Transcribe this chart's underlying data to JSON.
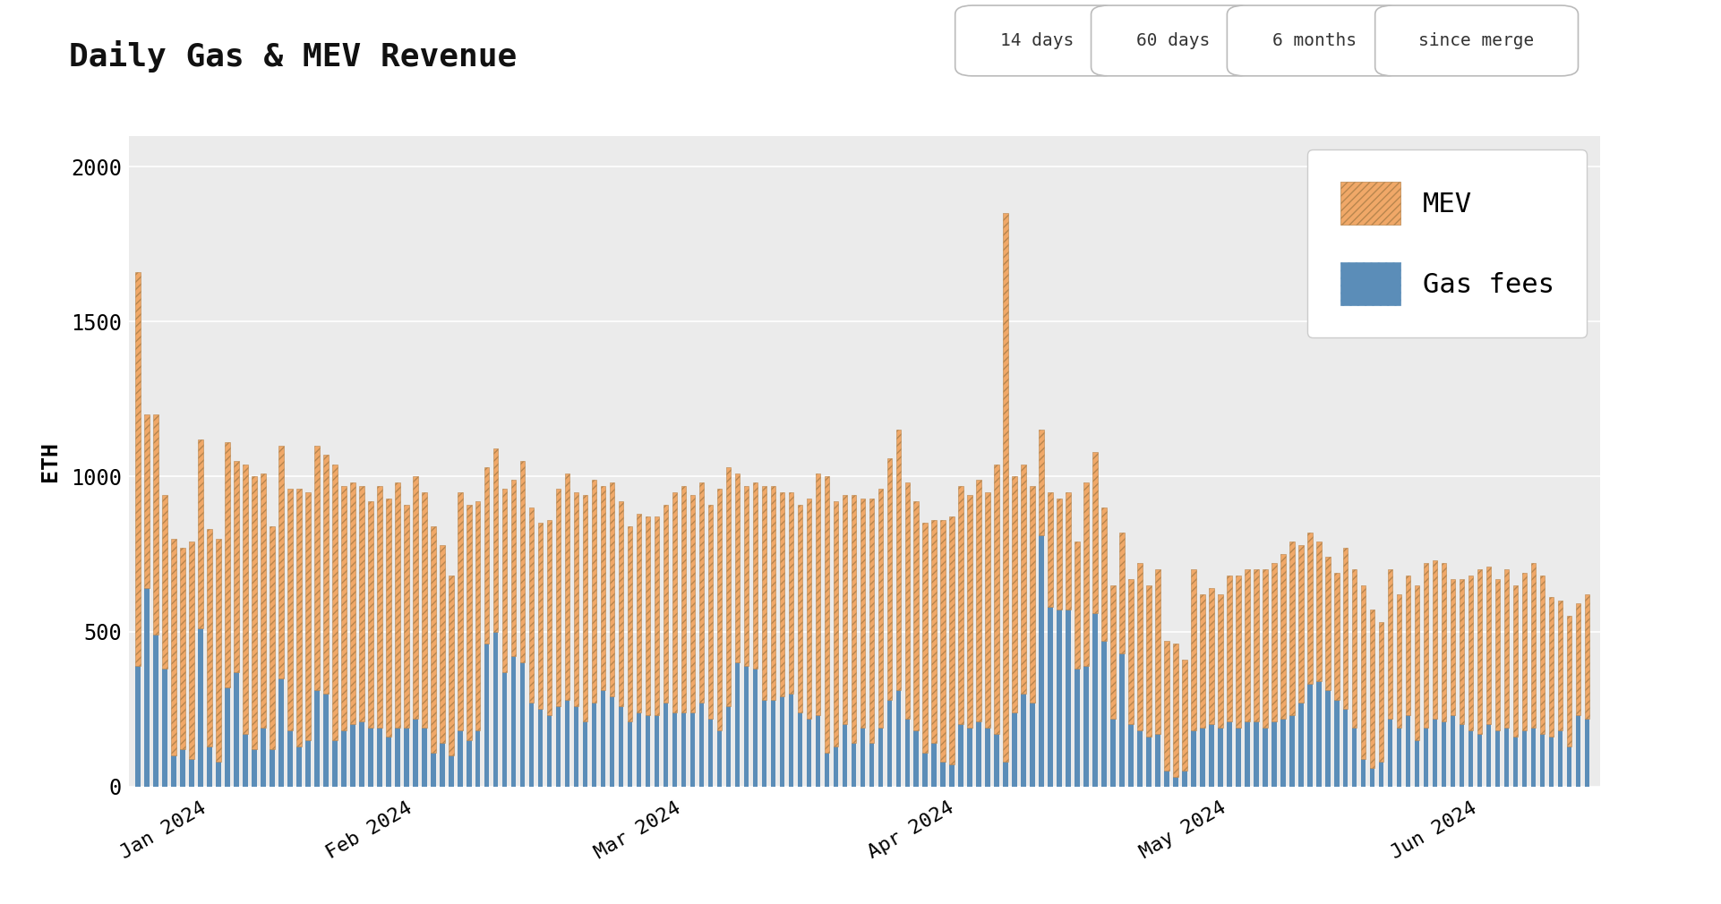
{
  "title": "Daily Gas & MEV Revenue",
  "ylabel": "ETH",
  "bg_color": "#ebebeb",
  "fig_bg_color": "#ffffff",
  "ylim": [
    0,
    2100
  ],
  "yticks": [
    0,
    500,
    1000,
    1500,
    2000
  ],
  "gas_color": "#5b8db8",
  "mev_color": "#f0a868",
  "gas_fees": [
    390,
    640,
    490,
    380,
    100,
    120,
    90,
    510,
    130,
    80,
    320,
    370,
    170,
    120,
    190,
    120,
    350,
    180,
    130,
    150,
    310,
    300,
    150,
    180,
    200,
    210,
    190,
    190,
    160,
    190,
    190,
    220,
    190,
    110,
    140,
    100,
    180,
    150,
    180,
    460,
    500,
    370,
    420,
    400,
    270,
    250,
    230,
    260,
    280,
    260,
    210,
    270,
    310,
    290,
    260,
    210,
    240,
    230,
    230,
    270,
    240,
    240,
    240,
    270,
    220,
    180,
    260,
    400,
    390,
    380,
    280,
    280,
    290,
    300,
    240,
    220,
    230,
    110,
    130,
    200,
    140,
    190,
    140,
    190,
    280,
    310,
    220,
    180,
    110,
    140,
    80,
    70,
    200,
    190,
    210,
    190,
    170,
    80,
    240,
    300,
    270,
    810,
    580,
    570,
    570,
    380,
    390,
    560,
    470,
    220,
    430,
    200,
    180,
    160,
    170,
    50,
    30,
    50,
    180,
    190,
    200,
    190,
    210,
    190,
    210,
    210,
    190,
    210,
    220,
    230,
    270,
    330,
    340,
    310,
    280,
    250,
    190,
    90,
    60,
    80,
    220,
    190,
    230,
    150,
    190,
    220,
    210,
    230,
    200,
    180,
    170,
    200,
    180,
    190,
    160,
    180,
    190,
    170,
    160,
    180,
    130,
    230,
    220
  ],
  "mev_values": [
    1270,
    560,
    710,
    560,
    700,
    650,
    700,
    610,
    700,
    720,
    790,
    680,
    870,
    880,
    820,
    720,
    750,
    780,
    830,
    800,
    790,
    770,
    890,
    790,
    780,
    760,
    730,
    780,
    770,
    790,
    720,
    780,
    760,
    730,
    640,
    580,
    770,
    760,
    740,
    570,
    590,
    590,
    570,
    650,
    630,
    600,
    630,
    700,
    730,
    690,
    730,
    720,
    660,
    690,
    660,
    630,
    640,
    640,
    640,
    640,
    710,
    730,
    700,
    710,
    690,
    780,
    770,
    610,
    580,
    600,
    690,
    690,
    660,
    650,
    670,
    710,
    780,
    890,
    790,
    740,
    800,
    740,
    790,
    770,
    780,
    840,
    760,
    740,
    740,
    720,
    780,
    800,
    770,
    750,
    780,
    760,
    870,
    1770,
    760,
    740,
    700,
    340,
    370,
    360,
    380,
    410,
    590,
    520,
    430,
    430,
    390,
    470,
    540,
    490,
    530,
    420,
    430,
    360,
    520,
    430,
    440,
    430,
    470,
    490,
    490,
    490,
    510,
    510,
    530,
    560,
    510,
    490,
    450,
    430,
    410,
    520,
    510,
    560,
    510,
    450,
    480,
    430,
    450,
    500,
    530,
    510,
    510,
    440,
    470,
    500,
    530,
    510,
    490,
    510,
    490,
    510,
    530,
    510,
    450,
    420,
    420,
    360,
    400
  ],
  "buttons": [
    "14 days",
    "60 days",
    "6 months",
    "since merge"
  ],
  "active_button": "6 months"
}
